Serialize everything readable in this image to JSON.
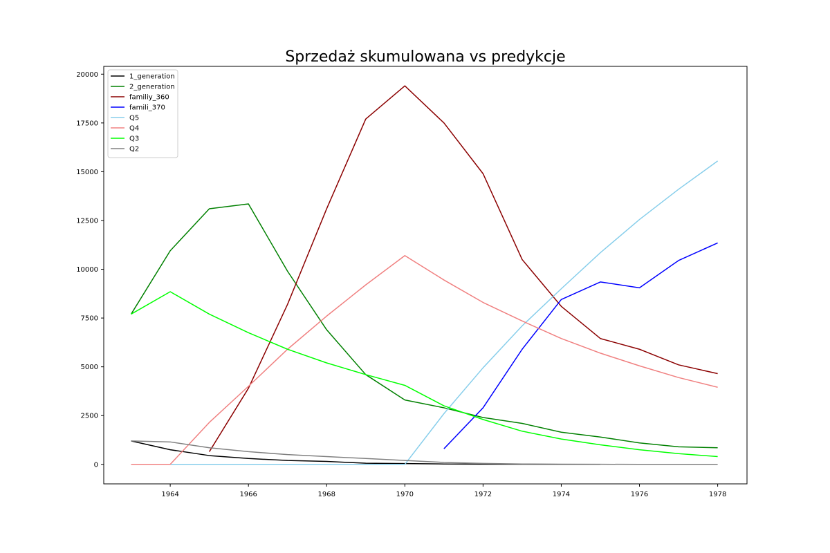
{
  "chart_data": {
    "type": "line",
    "title": "Sprzedaż skumulowana vs predykcje",
    "xlabel": "",
    "ylabel": "",
    "xlim": [
      1962.3,
      1978.75
    ],
    "ylim": [
      -1000,
      20400
    ],
    "xticks": [
      1964,
      1966,
      1968,
      1970,
      1972,
      1974,
      1976,
      1978
    ],
    "yticks": [
      0,
      2500,
      5000,
      7500,
      10000,
      12500,
      15000,
      17500,
      20000
    ],
    "legend_position": "top-left",
    "grid": false,
    "series": [
      {
        "name": "1_generation",
        "color": "#000000",
        "x": [
          1963,
          1964,
          1965,
          1966,
          1967,
          1968,
          1969,
          1970,
          1971,
          1972,
          1973,
          1974,
          1975
        ],
        "values": [
          1200,
          750,
          450,
          300,
          200,
          150,
          60,
          40,
          20,
          10,
          5,
          2,
          0
        ]
      },
      {
        "name": "2_generation",
        "color": "#008000",
        "x": [
          1963,
          1964,
          1965,
          1966,
          1967,
          1968,
          1969,
          1970,
          1971,
          1972,
          1973,
          1974,
          1975,
          1976,
          1977,
          1978
        ],
        "values": [
          7700,
          10950,
          13100,
          13350,
          9900,
          6900,
          4600,
          3300,
          2900,
          2400,
          2100,
          1650,
          1400,
          1100,
          900,
          850
        ]
      },
      {
        "name": "familiy_360",
        "color": "#8b0000",
        "x": [
          1965,
          1966,
          1967,
          1968,
          1969,
          1970,
          1971,
          1972,
          1973,
          1974,
          1975,
          1976,
          1977,
          1978
        ],
        "values": [
          650,
          3900,
          8200,
          13100,
          17700,
          19400,
          17500,
          14900,
          10500,
          8100,
          6450,
          5900,
          5100,
          4650
        ]
      },
      {
        "name": "famili_370",
        "color": "#0000ff",
        "x": [
          1971,
          1972,
          1973,
          1974,
          1975,
          1976,
          1977,
          1978
        ],
        "values": [
          800,
          2900,
          5900,
          8450,
          9350,
          9050,
          10450,
          11350
        ]
      },
      {
        "name": "Q5",
        "color": "#87ceeb",
        "x": [
          1963,
          1964,
          1965,
          1966,
          1967,
          1968,
          1969,
          1970,
          1971,
          1972,
          1973,
          1974,
          1975,
          1976,
          1977,
          1978
        ],
        "values": [
          0,
          0,
          0,
          0,
          0,
          0,
          0,
          0,
          2600,
          4950,
          7100,
          9000,
          10850,
          12550,
          14100,
          15550
        ]
      },
      {
        "name": "Q4",
        "color": "#f08080",
        "x": [
          1963,
          1964,
          1965,
          1966,
          1967,
          1968,
          1969,
          1970,
          1971,
          1972,
          1973,
          1974,
          1975,
          1976,
          1977,
          1978
        ],
        "values": [
          0,
          0,
          2150,
          4000,
          5900,
          7600,
          9200,
          10700,
          9450,
          8300,
          7350,
          6450,
          5700,
          5050,
          4450,
          3950
        ]
      },
      {
        "name": "Q3",
        "color": "#00ff00",
        "x": [
          1963,
          1964,
          1965,
          1966,
          1967,
          1968,
          1969,
          1970,
          1971,
          1972,
          1973,
          1974,
          1975,
          1976,
          1977,
          1978
        ],
        "values": [
          7700,
          8850,
          7700,
          6750,
          5900,
          5200,
          4600,
          4050,
          3000,
          2300,
          1700,
          1300,
          1000,
          750,
          550,
          400
        ]
      },
      {
        "name": "Q2",
        "color": "#808080",
        "x": [
          1963,
          1964,
          1965,
          1966,
          1967,
          1968,
          1969,
          1970,
          1971,
          1972,
          1973,
          1974,
          1975,
          1976,
          1977,
          1978
        ],
        "values": [
          1200,
          1150,
          850,
          650,
          500,
          400,
          300,
          200,
          100,
          50,
          20,
          10,
          5,
          0,
          0,
          0
        ]
      }
    ]
  }
}
